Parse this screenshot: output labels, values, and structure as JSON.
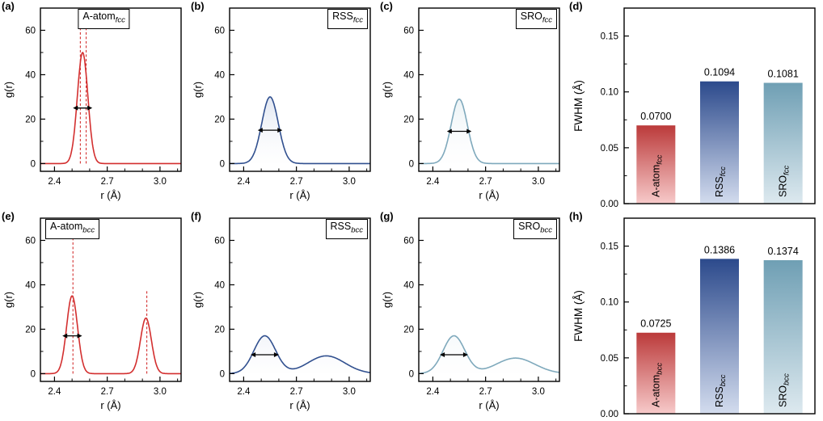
{
  "chart_data": {
    "type": "multi-panel",
    "description": "Pair distribution function g(r) curves and FWHM bar charts for fcc and bcc alloys",
    "panels": [
      {
        "id": "a",
        "letter": "(a)",
        "kind": "gr",
        "title": "A-atom",
        "title_sub": "fcc",
        "title_align": "center",
        "color": "#d32f2f",
        "fill": false,
        "xlim": [
          2.32,
          3.12
        ],
        "ylim": [
          -3.5,
          70
        ],
        "xticks": [
          2.4,
          2.7,
          3.0
        ],
        "xtick_labels": [
          "2.4",
          "2.7",
          "3.0"
        ],
        "yticks": [
          0,
          20,
          40,
          60
        ],
        "ytick_labels": [
          "0",
          "20",
          "40",
          "60"
        ],
        "x_minor_step": 0.1,
        "y_minor_step": 10,
        "xlabel": "r (Å)",
        "ylabel": "g(r)",
        "peaks": [
          {
            "center": 2.56,
            "height": 50,
            "sigma": 0.03
          }
        ],
        "dashes": [
          {
            "x": 2.547,
            "top": 70
          },
          {
            "x": 2.58,
            "top": 70
          }
        ],
        "arrow": {
          "x1": 2.505,
          "x2": 2.615,
          "y": 25
        }
      },
      {
        "id": "b",
        "letter": "(b)",
        "kind": "gr",
        "title": "RSS",
        "title_sub": "fcc",
        "title_align": "right",
        "color": "#31508f",
        "fill": true,
        "fill_top": "#7c95c4",
        "xlim": [
          2.32,
          3.12
        ],
        "ylim": [
          -3.5,
          70
        ],
        "xticks": [
          2.4,
          2.7,
          3.0
        ],
        "xtick_labels": [
          "2.4",
          "2.7",
          "3.0"
        ],
        "yticks": [
          0,
          20,
          40,
          60
        ],
        "ytick_labels": [
          "0",
          "20",
          "40",
          "60"
        ],
        "x_minor_step": 0.1,
        "y_minor_step": 10,
        "xlabel": "r (Å)",
        "ylabel": "g(r)",
        "peaks": [
          {
            "center": 2.55,
            "height": 30,
            "sigma": 0.047
          }
        ],
        "dashes": [],
        "arrow": {
          "x1": 2.48,
          "x2": 2.62,
          "y": 15
        }
      },
      {
        "id": "c",
        "letter": "(c)",
        "kind": "gr",
        "title": "SRO",
        "title_sub": "fcc",
        "title_align": "right",
        "color": "#7fa9bc",
        "fill": true,
        "fill_top": "#a5c6d2",
        "xlim": [
          2.32,
          3.12
        ],
        "ylim": [
          -3.5,
          70
        ],
        "xticks": [
          2.4,
          2.7,
          3.0
        ],
        "xtick_labels": [
          "2.4",
          "2.7",
          "3.0"
        ],
        "yticks": [
          0,
          20,
          40,
          60
        ],
        "ytick_labels": [
          "0",
          "20",
          "40",
          "60"
        ],
        "x_minor_step": 0.1,
        "y_minor_step": 10,
        "xlabel": "r (Å)",
        "ylabel": "g(r)",
        "peaks": [
          {
            "center": 2.55,
            "height": 29,
            "sigma": 0.046
          }
        ],
        "dashes": [],
        "arrow": {
          "x1": 2.48,
          "x2": 2.62,
          "y": 14.5
        }
      },
      {
        "id": "d",
        "letter": "(d)",
        "kind": "bar",
        "ylabel": "FWHM (Å)",
        "ylim": [
          0,
          0.175
        ],
        "yticks": [
          0,
          0.05,
          0.1,
          0.15
        ],
        "ytick_labels": [
          "0.00",
          "0.05",
          "0.10",
          "0.15"
        ],
        "y_minor_step": 0.025,
        "bars": [
          {
            "label": "A-atom",
            "sub": "fcc",
            "value": 0.07,
            "value_label": "0.0700",
            "color_top": "#bb3a3a",
            "color_bottom": "#f7caca"
          },
          {
            "label": "RSS",
            "sub": "fcc",
            "value": 0.1094,
            "value_label": "0.1094",
            "color_top": "#2c4a8c",
            "color_bottom": "#d3dcee"
          },
          {
            "label": "SRO",
            "sub": "fcc",
            "value": 0.1081,
            "value_label": "0.1081",
            "color_top": "#6f9fb4",
            "color_bottom": "#dde9ef"
          }
        ]
      },
      {
        "id": "e",
        "letter": "(e)",
        "kind": "gr",
        "title": "A-atom",
        "title_sub": "bcc",
        "title_align": "left",
        "color": "#d32f2f",
        "fill": false,
        "xlim": [
          2.32,
          3.12
        ],
        "ylim": [
          -3.5,
          70
        ],
        "xticks": [
          2.4,
          2.7,
          3.0
        ],
        "xtick_labels": [
          "2.4",
          "2.7",
          "3.0"
        ],
        "yticks": [
          0,
          20,
          40,
          60
        ],
        "ytick_labels": [
          "0",
          "20",
          "40",
          "60"
        ],
        "x_minor_step": 0.1,
        "y_minor_step": 10,
        "xlabel": "r (Å)",
        "ylabel": "g(r)",
        "peaks": [
          {
            "center": 2.5,
            "height": 35,
            "sigma": 0.031
          },
          {
            "center": 2.92,
            "height": 25,
            "sigma": 0.031
          }
        ],
        "dashes": [
          {
            "x": 2.505,
            "top": 70
          },
          {
            "x": 2.925,
            "top": 38
          }
        ],
        "arrow": {
          "x1": 2.445,
          "x2": 2.557,
          "y": 17
        }
      },
      {
        "id": "f",
        "letter": "(f)",
        "kind": "gr",
        "title": "RSS",
        "title_sub": "bcc",
        "title_align": "right",
        "color": "#31508f",
        "fill": true,
        "fill_top": "#7c95c4",
        "xlim": [
          2.32,
          3.12
        ],
        "ylim": [
          -3.5,
          70
        ],
        "xticks": [
          2.4,
          2.7,
          3.0
        ],
        "xtick_labels": [
          "2.4",
          "2.7",
          "3.0"
        ],
        "yticks": [
          0,
          20,
          40,
          60
        ],
        "ytick_labels": [
          "0",
          "20",
          "40",
          "60"
        ],
        "x_minor_step": 0.1,
        "y_minor_step": 10,
        "xlabel": "r (Å)",
        "ylabel": "g(r)",
        "peaks": [
          {
            "center": 2.52,
            "height": 17,
            "sigma": 0.062
          },
          {
            "center": 2.87,
            "height": 8,
            "sigma": 0.105
          }
        ],
        "dashes": [],
        "arrow": {
          "x1": 2.44,
          "x2": 2.6,
          "y": 8.5
        }
      },
      {
        "id": "g",
        "letter": "(g)",
        "kind": "gr",
        "title": "SRO",
        "title_sub": "bcc",
        "title_align": "right",
        "color": "#7fa9bc",
        "fill": true,
        "fill_top": "#a5c6d2",
        "xlim": [
          2.32,
          3.12
        ],
        "ylim": [
          -3.5,
          70
        ],
        "xticks": [
          2.4,
          2.7,
          3.0
        ],
        "xtick_labels": [
          "2.4",
          "2.7",
          "3.0"
        ],
        "yticks": [
          0,
          20,
          40,
          60
        ],
        "ytick_labels": [
          "0",
          "20",
          "40",
          "60"
        ],
        "x_minor_step": 0.1,
        "y_minor_step": 10,
        "xlabel": "r (Å)",
        "ylabel": "g(r)",
        "peaks": [
          {
            "center": 2.52,
            "height": 17,
            "sigma": 0.062
          },
          {
            "center": 2.87,
            "height": 7,
            "sigma": 0.11
          }
        ],
        "dashes": [],
        "arrow": {
          "x1": 2.44,
          "x2": 2.6,
          "y": 8.5
        }
      },
      {
        "id": "h",
        "letter": "(h)",
        "kind": "bar",
        "ylabel": "FWHM (Å)",
        "ylim": [
          0,
          0.175
        ],
        "yticks": [
          0,
          0.05,
          0.1,
          0.15
        ],
        "ytick_labels": [
          "0.00",
          "0.05",
          "0.10",
          "0.15"
        ],
        "y_minor_step": 0.025,
        "bars": [
          {
            "label": "A-atom",
            "sub": "bcc",
            "value": 0.0725,
            "value_label": "0.0725",
            "color_top": "#bb3a3a",
            "color_bottom": "#f7caca"
          },
          {
            "label": "RSS",
            "sub": "bcc",
            "value": 0.1386,
            "value_label": "0.1386",
            "color_top": "#2c4a8c",
            "color_bottom": "#d3dcee"
          },
          {
            "label": "SRO",
            "sub": "bcc",
            "value": 0.1374,
            "value_label": "0.1374",
            "color_top": "#6f9fb4",
            "color_bottom": "#dde9ef"
          }
        ]
      }
    ]
  }
}
